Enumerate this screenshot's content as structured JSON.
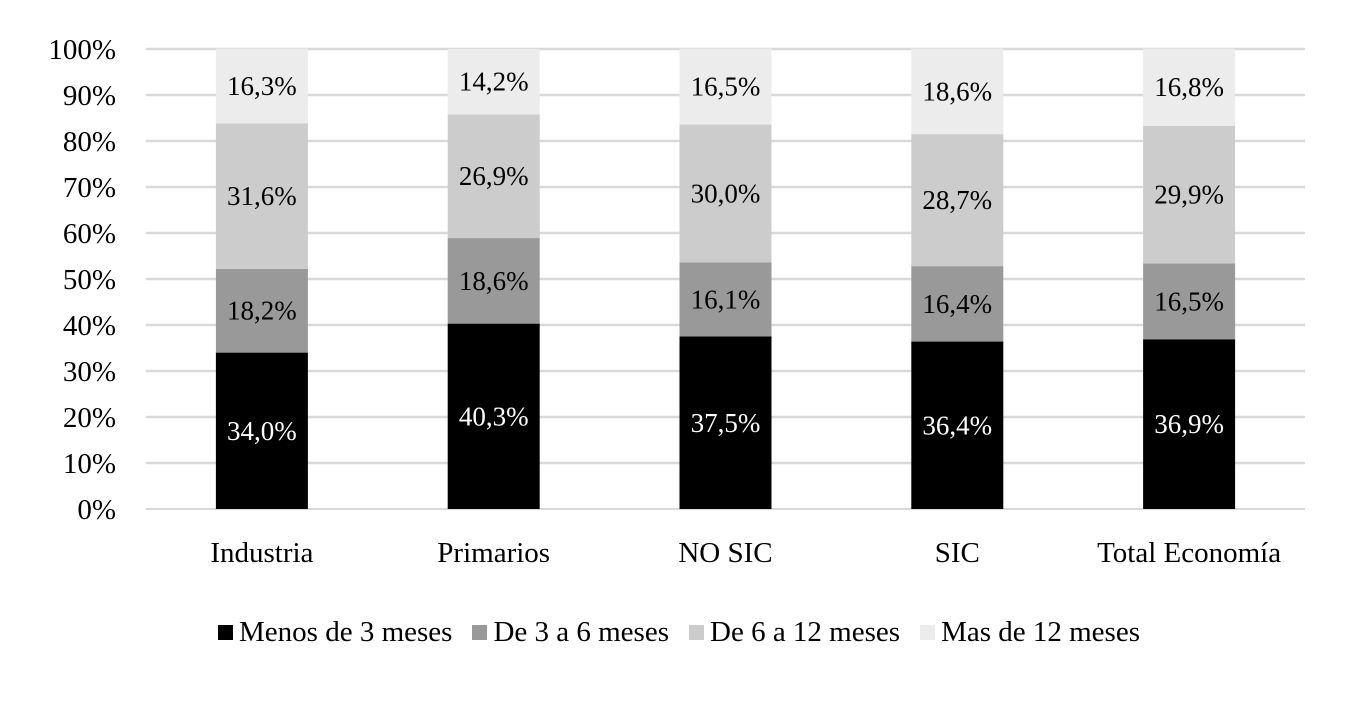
{
  "chart_data": {
    "type": "bar",
    "stacked": true,
    "categories": [
      "Industria",
      "Primarios",
      "NO SIC",
      "SIC",
      "Total Economía"
    ],
    "series": [
      {
        "name": "Menos de 3 meses",
        "color": "#000000",
        "label_color": "#ffffff",
        "values": [
          34.0,
          40.3,
          37.5,
          36.4,
          36.9
        ],
        "labels": [
          "34,0%",
          "40,3%",
          "37,5%",
          "36,4%",
          "36,9%"
        ]
      },
      {
        "name": "De 3 a 6 meses",
        "color": "#999999",
        "label_color": "#000000",
        "values": [
          18.2,
          18.6,
          16.1,
          16.4,
          16.5
        ],
        "labels": [
          "18,2%",
          "18,6%",
          "16,1%",
          "16,4%",
          "16,5%"
        ]
      },
      {
        "name": "De 6 a 12 meses",
        "color": "#cccccc",
        "label_color": "#000000",
        "values": [
          31.6,
          26.9,
          30.0,
          28.7,
          29.9
        ],
        "labels": [
          "31,6%",
          "26,9%",
          "30,0%",
          "28,7%",
          "29,9%"
        ]
      },
      {
        "name": "Mas de 12 meses",
        "color": "#ececec",
        "label_color": "#000000",
        "values": [
          16.3,
          14.2,
          16.5,
          18.6,
          16.8
        ],
        "labels": [
          "16,3%",
          "14,2%",
          "16,5%",
          "18,6%",
          "16,8%"
        ]
      }
    ],
    "ylim": [
      0,
      100
    ],
    "yticks": [
      "0%",
      "10%",
      "20%",
      "30%",
      "40%",
      "50%",
      "60%",
      "70%",
      "80%",
      "90%",
      "100%"
    ],
    "grid": true,
    "gridcolor": "#d9d9d9",
    "legend_position": "bottom",
    "title": "",
    "xlabel": "",
    "ylabel": ""
  }
}
